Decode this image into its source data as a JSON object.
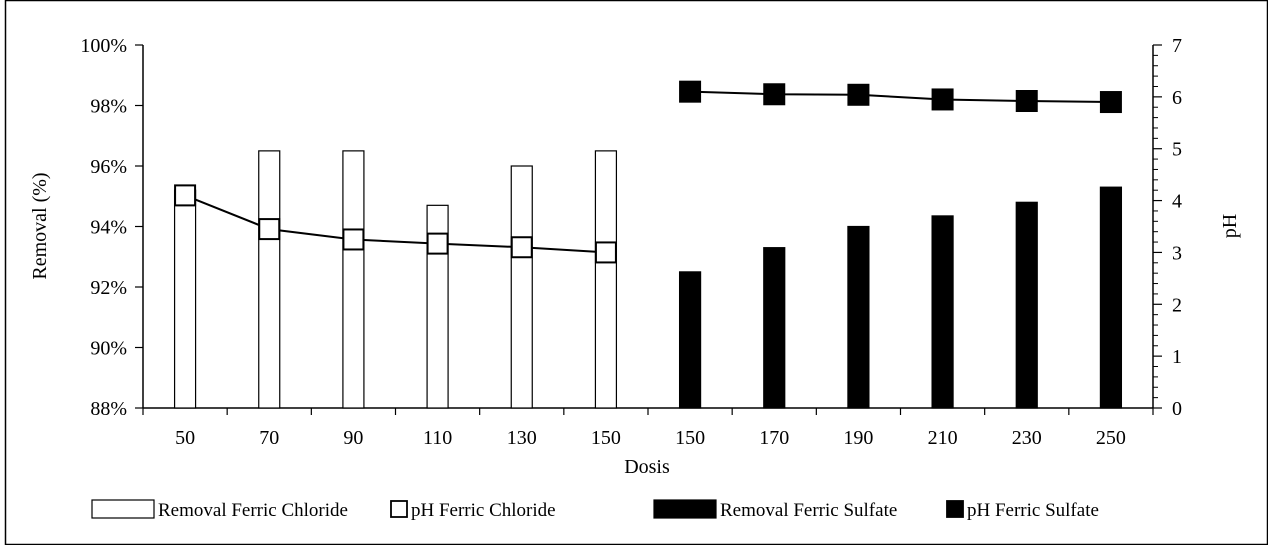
{
  "chart_data": {
    "type": "bar",
    "categories": [
      "50",
      "70",
      "90",
      "110",
      "130",
      "150",
      "150",
      "170",
      "190",
      "210",
      "230",
      "250"
    ],
    "xlabel": "Dosis",
    "ylabel": "Removal (%)",
    "y2label": "pH",
    "ylim": [
      88,
      100
    ],
    "y2lim": [
      0,
      7
    ],
    "yticks": [
      "88%",
      "90%",
      "92%",
      "94%",
      "96%",
      "98%",
      "100%"
    ],
    "y2ticks": [
      "0",
      "1",
      "2",
      "3",
      "4",
      "5",
      "6",
      "7"
    ],
    "legend_position": "bottom",
    "series": [
      {
        "name": "Removal Ferric Chloride",
        "kind": "bar",
        "axis": "left",
        "fill": "#ffffff",
        "values": [
          95.2,
          96.5,
          96.5,
          94.7,
          96.0,
          96.5,
          null,
          null,
          null,
          null,
          null,
          null
        ]
      },
      {
        "name": "pH Ferric Chloride",
        "kind": "line",
        "axis": "right",
        "marker": "square-open",
        "values": [
          4.1,
          3.45,
          3.25,
          3.17,
          3.1,
          3.0,
          null,
          null,
          null,
          null,
          null,
          null
        ]
      },
      {
        "name": "Removal Ferric Sulfate",
        "kind": "bar",
        "axis": "left",
        "fill": "#000000",
        "values": [
          null,
          null,
          null,
          null,
          null,
          null,
          92.5,
          93.3,
          94.0,
          94.35,
          94.8,
          95.3
        ]
      },
      {
        "name": "pH Ferric Sulfate",
        "kind": "line",
        "axis": "right",
        "marker": "square-filled",
        "values": [
          null,
          null,
          null,
          null,
          null,
          null,
          6.1,
          6.05,
          6.04,
          5.95,
          5.92,
          5.9
        ]
      }
    ]
  }
}
